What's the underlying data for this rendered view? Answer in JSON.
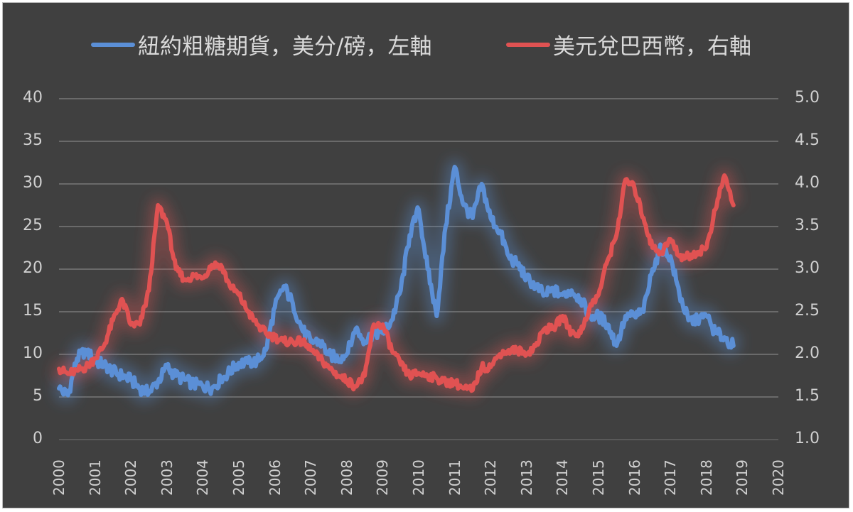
{
  "legend": [
    {
      "label": "紐約粗糖期貨，美分/磅，左軸",
      "color": "#5b8fd6"
    },
    {
      "label": "美元兌巴西幣，右軸",
      "color": "#e05252"
    }
  ],
  "axes": {
    "left_ticks": [
      "40",
      "35",
      "30",
      "25",
      "20",
      "15",
      "10",
      "5",
      "0"
    ],
    "right_ticks": [
      "5.0",
      "4.5",
      "4.0",
      "3.5",
      "3.0",
      "2.5",
      "2.0",
      "1.5",
      "1.0"
    ],
    "x_ticks": [
      "2000",
      "2001",
      "2002",
      "2003",
      "2004",
      "2005",
      "2006",
      "2007",
      "2008",
      "2009",
      "2010",
      "2011",
      "2012",
      "2013",
      "2014",
      "2015",
      "2016",
      "2017",
      "2018",
      "2019",
      "2020"
    ]
  },
  "chart_data": {
    "type": "line",
    "title": "",
    "xlabel": "",
    "ylabel": "紐約粗糖期貨，美分/磅",
    "ylabel_right": "美元兌巴西幣",
    "xlim": [
      2000,
      2020
    ],
    "ylim": [
      0,
      40
    ],
    "ylim_right": [
      1.0,
      5.0
    ],
    "grid": true,
    "legend_position": "top",
    "x": [
      2000.0,
      2000.25,
      2000.5,
      2000.75,
      2001.0,
      2001.25,
      2001.5,
      2001.75,
      2002.0,
      2002.25,
      2002.5,
      2002.75,
      2003.0,
      2003.25,
      2003.5,
      2003.75,
      2004.0,
      2004.25,
      2004.5,
      2004.75,
      2005.0,
      2005.25,
      2005.5,
      2005.75,
      2006.0,
      2006.25,
      2006.5,
      2006.75,
      2007.0,
      2007.25,
      2007.5,
      2007.75,
      2008.0,
      2008.25,
      2008.5,
      2008.75,
      2009.0,
      2009.25,
      2009.5,
      2009.75,
      2010.0,
      2010.25,
      2010.5,
      2010.75,
      2011.0,
      2011.25,
      2011.5,
      2011.75,
      2012.0,
      2012.25,
      2012.5,
      2012.75,
      2013.0,
      2013.25,
      2013.5,
      2013.75,
      2014.0,
      2014.25,
      2014.5,
      2014.75,
      2015.0,
      2015.25,
      2015.5,
      2015.75,
      2016.0,
      2016.25,
      2016.5,
      2016.75,
      2017.0,
      2017.25,
      2017.5,
      2017.75,
      2018.0,
      2018.25,
      2018.5,
      2018.75
    ],
    "series": [
      {
        "name": "紐約粗糖期貨，美分/磅，左軸",
        "axis": "left",
        "color": "#5b8fd6",
        "values": [
          6.0,
          5.2,
          9.5,
          10.5,
          9.2,
          8.8,
          8.0,
          7.5,
          7.0,
          6.0,
          5.5,
          6.8,
          8.5,
          7.5,
          7.0,
          6.5,
          6.3,
          6.0,
          7.0,
          8.0,
          9.0,
          9.0,
          9.2,
          10.5,
          15.5,
          18.0,
          16.0,
          13.0,
          11.5,
          11.5,
          10.0,
          9.5,
          10.0,
          13.0,
          11.5,
          12.5,
          12.5,
          14.0,
          17.5,
          24.0,
          27.0,
          20.0,
          14.5,
          25.0,
          32.0,
          27.5,
          26.0,
          30.0,
          26.0,
          24.5,
          21.5,
          20.5,
          19.0,
          18.0,
          17.0,
          17.5,
          17.0,
          17.5,
          16.5,
          14.5,
          14.5,
          13.5,
          11.0,
          14.5,
          14.5,
          15.0,
          20.0,
          22.5,
          21.5,
          17.0,
          14.0,
          14.0,
          14.5,
          12.5,
          12.0,
          11.0
        ]
      },
      {
        "name": "美元兌巴西幣，右軸",
        "axis": "right",
        "color": "#e05252",
        "values": [
          1.83,
          1.77,
          1.81,
          1.85,
          1.95,
          2.1,
          2.4,
          2.65,
          2.35,
          2.35,
          2.75,
          3.75,
          3.55,
          3.0,
          2.88,
          2.92,
          2.9,
          3.05,
          3.05,
          2.8,
          2.7,
          2.5,
          2.35,
          2.25,
          2.2,
          2.15,
          2.15,
          2.15,
          2.05,
          1.95,
          1.85,
          1.75,
          1.7,
          1.62,
          1.75,
          2.35,
          2.35,
          2.05,
          1.88,
          1.75,
          1.78,
          1.75,
          1.72,
          1.67,
          1.67,
          1.6,
          1.58,
          1.85,
          1.85,
          2.0,
          2.05,
          2.05,
          2.0,
          2.1,
          2.3,
          2.3,
          2.45,
          2.25,
          2.25,
          2.55,
          2.7,
          3.1,
          3.4,
          4.05,
          3.95,
          3.6,
          3.25,
          3.2,
          3.35,
          3.15,
          3.15,
          3.2,
          3.25,
          3.7,
          4.1,
          3.75
        ]
      }
    ]
  }
}
